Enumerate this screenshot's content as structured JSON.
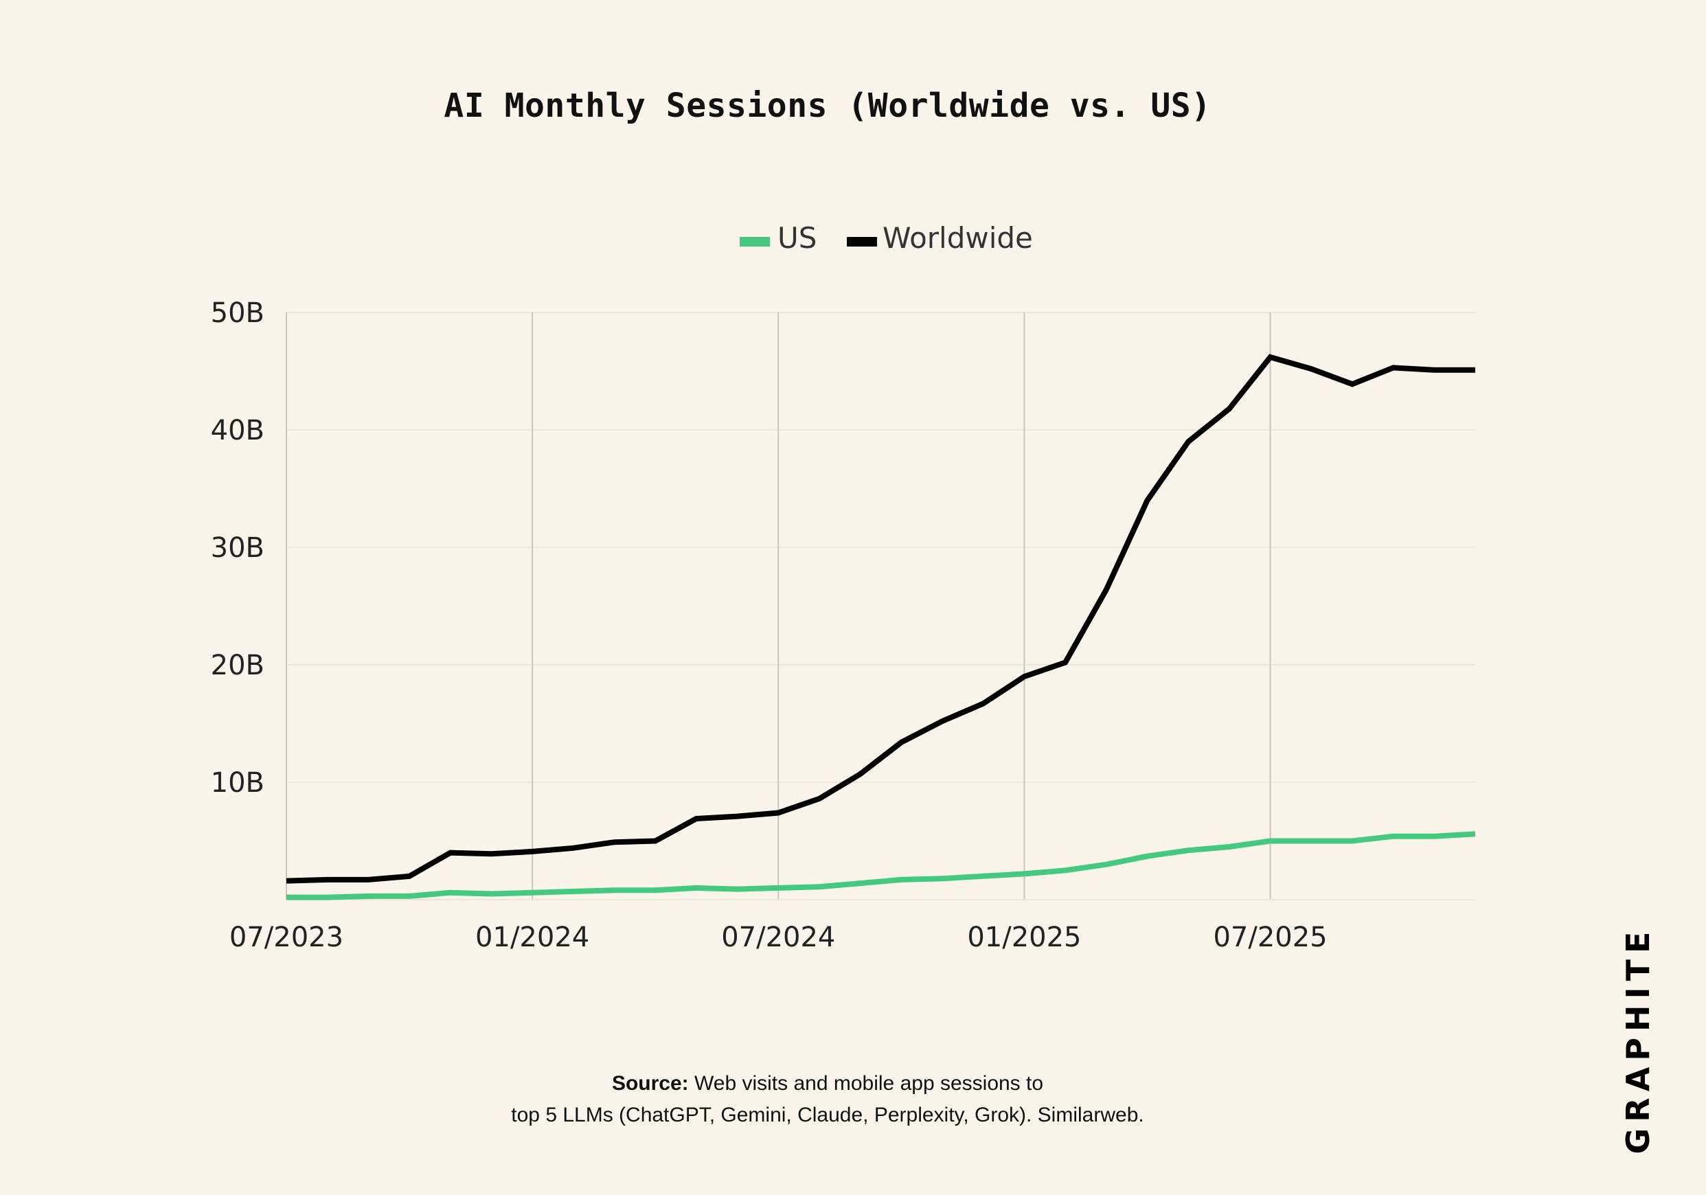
{
  "chart_data": {
    "type": "line",
    "title": "AI Monthly Sessions (Worldwide vs. US)",
    "xlabel": "",
    "ylabel": "",
    "x": [
      "07/2023",
      "08/2023",
      "09/2023",
      "10/2023",
      "11/2023",
      "12/2023",
      "01/2024",
      "02/2024",
      "03/2024",
      "04/2024",
      "05/2024",
      "06/2024",
      "07/2024",
      "08/2024",
      "09/2024",
      "10/2024",
      "11/2024",
      "12/2024",
      "01/2025",
      "02/2025",
      "03/2025",
      "04/2025",
      "05/2025",
      "06/2025",
      "07/2025",
      "08/2025",
      "09/2025",
      "10/2025",
      "11/2025",
      "12/2025"
    ],
    "x_ticks": [
      "07/2023",
      "01/2024",
      "07/2024",
      "01/2025",
      "07/2025"
    ],
    "y_ticks": [
      "10B",
      "20B",
      "30B",
      "40B",
      "50B"
    ],
    "y_tick_values": [
      10,
      20,
      30,
      40,
      50
    ],
    "ylim": [
      0,
      50
    ],
    "y_unit": "B",
    "grid": true,
    "legend_position": "top-center",
    "series": [
      {
        "name": "US",
        "color": "#45c97e",
        "values": [
          0.2,
          0.2,
          0.3,
          0.3,
          0.6,
          0.5,
          0.6,
          0.7,
          0.8,
          0.8,
          1.0,
          0.9,
          1.0,
          1.1,
          1.4,
          1.7,
          1.8,
          2.0,
          2.2,
          2.5,
          3.0,
          3.7,
          4.2,
          4.5,
          5.0,
          5.0,
          5.0,
          5.4,
          5.4,
          5.6
        ]
      },
      {
        "name": "Worldwide",
        "color": "#000000",
        "values": [
          1.6,
          1.7,
          1.7,
          2.0,
          4.0,
          3.9,
          4.1,
          4.4,
          4.9,
          5.0,
          6.9,
          7.1,
          7.4,
          8.6,
          10.7,
          13.4,
          15.2,
          16.7,
          19.0,
          20.2,
          26.4,
          34.0,
          39.0,
          41.8,
          46.2,
          45.2,
          43.9,
          45.3,
          45.1,
          45.1
        ]
      }
    ]
  },
  "source": {
    "label": "Source:",
    "line1": "Web visits and mobile app sessions to",
    "line2": "top 5 LLMs (ChatGPT, Gemini, Claude, Perplexity, Grok). Similarweb."
  },
  "brand": {
    "name": "GRAPHITE"
  }
}
